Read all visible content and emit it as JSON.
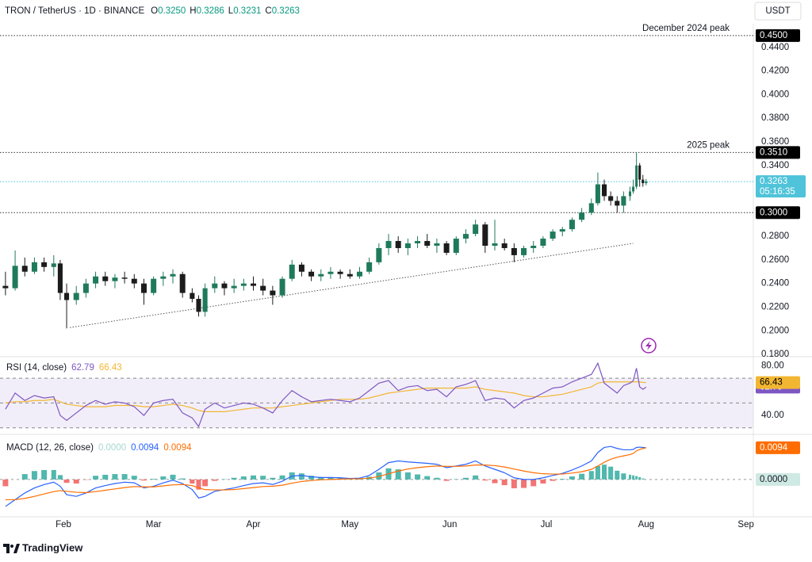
{
  "currency": "USDT",
  "footer": "TradingView",
  "chart_data": [
    {
      "type": "candlestick",
      "title": "TRON / TetherUS · 1D · BINANCE",
      "ohlc_legend": [
        {
          "name": "O",
          "value": {
            "value": 0.325,
            "label": "0.3250"
          }
        },
        {
          "name": "H",
          "value": {
            "value": 0.3286,
            "label": "0.3286"
          }
        },
        {
          "name": "L",
          "value": {
            "value": 0.3231,
            "label": "0.3231"
          }
        },
        {
          "name": "C",
          "value": {
            "value": 0.3263,
            "label": "0.3263"
          }
        }
      ],
      "x": [
        14,
        17,
        20,
        23,
        26,
        29,
        31,
        33,
        36,
        39,
        42,
        45,
        48,
        51,
        54,
        57,
        60,
        63,
        66,
        69,
        72,
        74,
        76,
        79,
        82,
        85,
        88,
        91,
        94,
        97,
        100,
        103,
        106,
        109,
        112,
        115,
        118,
        121,
        124,
        127,
        130,
        133,
        136,
        139,
        142,
        145,
        148,
        151,
        154,
        157,
        160,
        163,
        166,
        169,
        172,
        175,
        178,
        181,
        184,
        187,
        190,
        193,
        196,
        198,
        200,
        202,
        204,
        206,
        208,
        209,
        210,
        211,
        212,
        213
      ],
      "open": [
        0.238,
        0.236,
        0.255,
        0.25,
        0.258,
        0.254,
        0.257,
        0.232,
        0.226,
        0.232,
        0.24,
        0.246,
        0.242,
        0.245,
        0.244,
        0.24,
        0.232,
        0.244,
        0.246,
        0.248,
        0.232,
        0.227,
        0.216,
        0.236,
        0.24,
        0.236,
        0.238,
        0.24,
        0.238,
        0.234,
        0.23,
        0.244,
        0.256,
        0.25,
        0.246,
        0.248,
        0.25,
        0.248,
        0.246,
        0.25,
        0.258,
        0.27,
        0.276,
        0.27,
        0.274,
        0.276,
        0.272,
        0.274,
        0.266,
        0.278,
        0.282,
        0.29,
        0.272,
        0.274,
        0.27,
        0.264,
        0.27,
        0.272,
        0.278,
        0.284,
        0.286,
        0.294,
        0.3,
        0.308,
        0.324,
        0.314,
        0.31,
        0.306,
        0.314,
        0.318,
        0.322,
        0.34,
        0.328,
        0.325
      ],
      "high": [
        0.25,
        0.268,
        0.262,
        0.262,
        0.262,
        0.264,
        0.26,
        0.24,
        0.238,
        0.244,
        0.25,
        0.25,
        0.248,
        0.25,
        0.248,
        0.244,
        0.246,
        0.25,
        0.252,
        0.25,
        0.236,
        0.23,
        0.24,
        0.246,
        0.242,
        0.244,
        0.244,
        0.246,
        0.244,
        0.238,
        0.246,
        0.26,
        0.258,
        0.252,
        0.252,
        0.254,
        0.252,
        0.252,
        0.254,
        0.262,
        0.274,
        0.282,
        0.28,
        0.278,
        0.28,
        0.282,
        0.278,
        0.276,
        0.28,
        0.286,
        0.294,
        0.292,
        0.294,
        0.278,
        0.274,
        0.272,
        0.276,
        0.28,
        0.286,
        0.288,
        0.296,
        0.304,
        0.312,
        0.334,
        0.328,
        0.318,
        0.314,
        0.318,
        0.322,
        0.328,
        0.351,
        0.342,
        0.332,
        0.3286
      ],
      "low": [
        0.23,
        0.234,
        0.246,
        0.248,
        0.25,
        0.246,
        0.226,
        0.202,
        0.222,
        0.228,
        0.236,
        0.238,
        0.236,
        0.24,
        0.236,
        0.222,
        0.23,
        0.238,
        0.24,
        0.228,
        0.224,
        0.212,
        0.212,
        0.232,
        0.23,
        0.232,
        0.234,
        0.234,
        0.23,
        0.222,
        0.228,
        0.242,
        0.246,
        0.242,
        0.242,
        0.244,
        0.244,
        0.244,
        0.244,
        0.248,
        0.256,
        0.264,
        0.266,
        0.264,
        0.27,
        0.27,
        0.266,
        0.264,
        0.264,
        0.274,
        0.28,
        0.266,
        0.268,
        0.268,
        0.258,
        0.262,
        0.266,
        0.27,
        0.276,
        0.28,
        0.284,
        0.292,
        0.298,
        0.306,
        0.31,
        0.306,
        0.3,
        0.3,
        0.31,
        0.316,
        0.32,
        0.322,
        0.322,
        0.3231
      ],
      "close": [
        0.236,
        0.255,
        0.25,
        0.258,
        0.254,
        0.257,
        0.232,
        0.226,
        0.232,
        0.24,
        0.246,
        0.242,
        0.245,
        0.244,
        0.24,
        0.232,
        0.244,
        0.246,
        0.248,
        0.232,
        0.227,
        0.216,
        0.236,
        0.24,
        0.236,
        0.238,
        0.24,
        0.238,
        0.234,
        0.23,
        0.244,
        0.256,
        0.25,
        0.246,
        0.248,
        0.25,
        0.248,
        0.246,
        0.25,
        0.258,
        0.27,
        0.276,
        0.27,
        0.274,
        0.276,
        0.272,
        0.274,
        0.266,
        0.278,
        0.282,
        0.29,
        0.272,
        0.274,
        0.27,
        0.264,
        0.27,
        0.272,
        0.278,
        0.284,
        0.286,
        0.294,
        0.3,
        0.308,
        0.324,
        0.314,
        0.31,
        0.306,
        0.314,
        0.318,
        0.322,
        0.34,
        0.328,
        0.325,
        0.3263
      ],
      "up_color": "#1f7a5c",
      "down_color": "#1c1c1c",
      "xlim": [
        12.3,
        246.3
      ],
      "xticks": [
        {
          "value": 32,
          "label": "Feb"
        },
        {
          "value": 60,
          "label": "Mar"
        },
        {
          "value": 91,
          "label": "Apr"
        },
        {
          "value": 121,
          "label": "May"
        },
        {
          "value": 152,
          "label": "Jun"
        },
        {
          "value": 182,
          "label": "Jul"
        },
        {
          "value": 213,
          "label": "Aug"
        },
        {
          "value": 244,
          "label": "Sep"
        }
      ],
      "ylim": [
        0.178,
        0.46
      ],
      "yticks": [
        {
          "value": 0.44,
          "label": "0.4400"
        },
        {
          "value": 0.42,
          "label": "0.4200"
        },
        {
          "value": 0.4,
          "label": "0.4000"
        },
        {
          "value": 0.38,
          "label": "0.3800"
        },
        {
          "value": 0.36,
          "label": "0.3600"
        },
        {
          "value": 0.34,
          "label": "0.3400"
        },
        {
          "value": 0.28,
          "label": "0.2800"
        },
        {
          "value": 0.26,
          "label": "0.2600"
        },
        {
          "value": 0.24,
          "label": "0.2400"
        },
        {
          "value": 0.22,
          "label": "0.2200"
        },
        {
          "value": 0.2,
          "label": "0.2000"
        },
        {
          "value": 0.18,
          "label": "0.1800"
        }
      ],
      "levels": [
        {
          "value": 0.45,
          "label": "0.4500",
          "note": "December 2024 peak"
        },
        {
          "value": 0.351,
          "label": "0.3510",
          "note": "2025 peak"
        },
        {
          "value": 0.3,
          "label": "0.3000"
        }
      ],
      "last_price": {
        "value": 0.3263,
        "label": "0.3263",
        "countdown": "05:16:35",
        "color": "#4fc3d9"
      },
      "trendline": {
        "x": [
          34,
          209
        ],
        "y": [
          0.2027,
          0.274
        ]
      }
    },
    {
      "type": "line",
      "title": "RSI (14, close)",
      "series": [
        {
          "color": "#7e57c2",
          "legend_value": {
            "value": 62.79,
            "label": "62.79"
          },
          "values": [
            45,
            58,
            52,
            56,
            54,
            55,
            40,
            36,
            42,
            48,
            52,
            49,
            51,
            50,
            47,
            40,
            50,
            52,
            53,
            42,
            38,
            31,
            45,
            50,
            46,
            48,
            50,
            49,
            46,
            42,
            52,
            60,
            55,
            51,
            52,
            53,
            52,
            51,
            54,
            60,
            66,
            68,
            60,
            63,
            64,
            60,
            61,
            55,
            63,
            65,
            68,
            52,
            54,
            53,
            46,
            52,
            54,
            58,
            62,
            63,
            67,
            70,
            73,
            82,
            66,
            62,
            58,
            64,
            66,
            68,
            78,
            63,
            61,
            62.79
          ]
        },
        {
          "color": "#f2b632",
          "legend_value": {
            "value": 66.43,
            "label": "66.43"
          },
          "values": [
            50,
            51,
            51,
            52,
            52,
            53,
            51,
            49,
            48,
            47,
            47,
            47,
            48,
            48,
            48,
            47,
            47,
            48,
            49,
            48,
            46,
            44,
            43,
            43,
            43,
            44,
            45,
            46,
            46,
            46,
            47,
            48,
            49,
            50,
            51,
            52,
            53,
            53,
            53,
            54,
            56,
            58,
            59,
            60,
            61,
            62,
            62,
            62,
            62,
            62,
            63,
            61,
            60,
            59,
            58,
            56,
            55,
            55,
            56,
            57,
            59,
            61,
            63,
            66,
            67,
            67,
            67,
            67,
            67,
            67,
            67,
            67,
            66.6,
            66.43
          ]
        }
      ],
      "ylim": [
        26,
        86
      ],
      "yticks": [
        {
          "value": 80,
          "label": "80.00"
        },
        {
          "value": 40,
          "label": "40.00"
        }
      ],
      "band": [
        30,
        70
      ],
      "midline": 50
    },
    {
      "type": "macd",
      "title": "MACD (12, 26, close)",
      "histogram": {
        "up_color": "#26a69a",
        "down_color": "#ef5350",
        "legend_value": {
          "value": 0,
          "label": "0.0000"
        },
        "legend_color": "#a8d8cf",
        "values": [
          -0.002,
          0.0,
          0.0016,
          0.0025,
          0.0028,
          0.0028,
          0.0013,
          -0.001,
          -0.0012,
          -0.0001,
          0.0011,
          0.0014,
          0.0016,
          0.0016,
          0.0011,
          -0.0003,
          0.0002,
          0.0009,
          0.0014,
          0.0003,
          -0.0012,
          -0.003,
          -0.002,
          -0.0004,
          0.0001,
          0.0005,
          0.0009,
          0.0012,
          0.0011,
          0.0005,
          0.0012,
          0.0021,
          0.0018,
          0.0011,
          0.0007,
          0.0006,
          0.0004,
          0.0001,
          0.0002,
          0.0008,
          0.0021,
          0.0033,
          0.003,
          0.0021,
          0.0015,
          0.001,
          0.0005,
          -0.0004,
          0.0001,
          0.0005,
          0.0012,
          -0.0003,
          -0.0011,
          -0.0017,
          -0.0026,
          -0.0025,
          -0.002,
          -0.0012,
          -0.0004,
          0.0002,
          0.0009,
          0.0017,
          0.0025,
          0.004,
          0.0044,
          0.0038,
          0.0026,
          0.0018,
          0.0014,
          0.0012,
          0.001,
          0.0007,
          0.0003,
          0.0
        ]
      },
      "series": [
        {
          "color": "#2962ff",
          "legend_value": {
            "value": 0.0094,
            "label": "0.0094"
          },
          "values": [
            -0.008,
            -0.006,
            -0.004,
            -0.0025,
            -0.0015,
            -0.0008,
            -0.002,
            -0.0045,
            -0.005,
            -0.004,
            -0.0025,
            -0.0018,
            -0.0012,
            -0.0008,
            -0.001,
            -0.0025,
            -0.002,
            -0.001,
            -0.0002,
            -0.0012,
            -0.003,
            -0.0055,
            -0.005,
            -0.0035,
            -0.003,
            -0.0025,
            -0.0018,
            -0.0012,
            -0.001,
            -0.0015,
            -0.0005,
            0.001,
            0.0012,
            0.0008,
            0.0006,
            0.0006,
            0.0005,
            0.0003,
            0.0004,
            0.0012,
            0.003,
            0.005,
            0.0055,
            0.0052,
            0.005,
            0.0048,
            0.0045,
            0.0035,
            0.004,
            0.0045,
            0.0055,
            0.004,
            0.003,
            0.002,
            0.0005,
            0.0,
            0.0,
            0.0005,
            0.0012,
            0.0018,
            0.0028,
            0.004,
            0.0055,
            0.008,
            0.0095,
            0.0098,
            0.0092,
            0.0088,
            0.0088,
            0.0089,
            0.0095,
            0.0096,
            0.0095,
            0.0094
          ]
        },
        {
          "color": "#ff6d00",
          "legend_value": {
            "value": 0.0094,
            "label": "0.0094"
          },
          "values": [
            -0.006,
            -0.006,
            -0.0056,
            -0.005,
            -0.0043,
            -0.0036,
            -0.0033,
            -0.0035,
            -0.0038,
            -0.0039,
            -0.0036,
            -0.0032,
            -0.0028,
            -0.0024,
            -0.0021,
            -0.0022,
            -0.0022,
            -0.0019,
            -0.0016,
            -0.0015,
            -0.0018,
            -0.0025,
            -0.003,
            -0.0031,
            -0.0031,
            -0.003,
            -0.0027,
            -0.0024,
            -0.0021,
            -0.002,
            -0.0017,
            -0.0011,
            -0.0006,
            -0.0003,
            -0.0001,
            0.0,
            0.0001,
            0.0002,
            0.0002,
            0.0004,
            0.0009,
            0.0017,
            0.0025,
            0.0031,
            0.0035,
            0.0038,
            0.004,
            0.0039,
            0.0039,
            0.004,
            0.0043,
            0.0043,
            0.0041,
            0.0037,
            0.0031,
            0.0025,
            0.002,
            0.0017,
            0.0016,
            0.0016,
            0.0019,
            0.0023,
            0.003,
            0.004,
            0.0051,
            0.006,
            0.0066,
            0.007,
            0.0074,
            0.0077,
            0.0085,
            0.0089,
            0.0092,
            0.0094
          ]
        }
      ],
      "ylim": [
        -0.0106,
        0.0129
      ],
      "zero": {
        "value": 0,
        "label": "0.0000"
      }
    }
  ]
}
